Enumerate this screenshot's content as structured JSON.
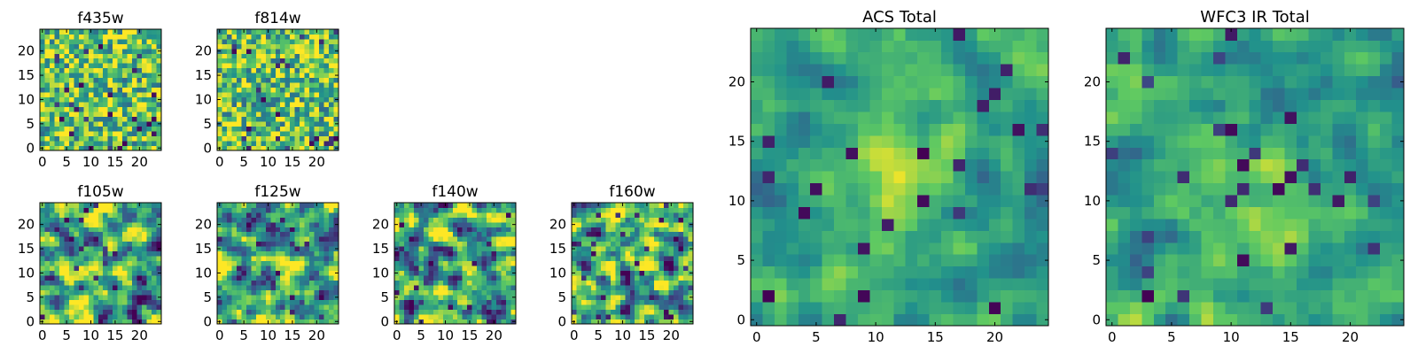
{
  "figure": {
    "colormap": "viridis",
    "colormap_stops": [
      "#440154",
      "#3b528b",
      "#21918c",
      "#5ec962",
      "#fde725"
    ],
    "frame_color": "#000000"
  },
  "chart_data": [
    {
      "type": "heatmap",
      "title": "f435w",
      "grid_size": 25,
      "xlim": [
        0,
        24
      ],
      "ylim": [
        0,
        24
      ],
      "xticks": [
        0,
        5,
        10,
        15,
        20
      ],
      "yticks": [
        0,
        5,
        10,
        15,
        20
      ],
      "texture": "noise-fine"
    },
    {
      "type": "heatmap",
      "title": "f814w",
      "grid_size": 25,
      "xlim": [
        0,
        24
      ],
      "ylim": [
        0,
        24
      ],
      "xticks": [
        0,
        5,
        10,
        15,
        20
      ],
      "yticks": [
        0,
        5,
        10,
        15,
        20
      ],
      "texture": "noise-fine"
    },
    {
      "type": "heatmap",
      "title": "f105w",
      "grid_size": 25,
      "xlim": [
        0,
        24
      ],
      "ylim": [
        0,
        24
      ],
      "xticks": [
        0,
        5,
        10,
        15,
        20
      ],
      "yticks": [
        0,
        5,
        10,
        15,
        20
      ],
      "texture": "noise-smooth"
    },
    {
      "type": "heatmap",
      "title": "f125w",
      "grid_size": 25,
      "xlim": [
        0,
        24
      ],
      "ylim": [
        0,
        24
      ],
      "xticks": [
        0,
        5,
        10,
        15,
        20
      ],
      "yticks": [
        0,
        5,
        10,
        15,
        20
      ],
      "texture": "noise-smooth"
    },
    {
      "type": "heatmap",
      "title": "f140w",
      "grid_size": 25,
      "xlim": [
        0,
        24
      ],
      "ylim": [
        0,
        24
      ],
      "xticks": [
        0,
        5,
        10,
        15,
        20
      ],
      "yticks": [
        0,
        5,
        10,
        15,
        20
      ],
      "texture": "noise-smooth"
    },
    {
      "type": "heatmap",
      "title": "f160w",
      "grid_size": 25,
      "xlim": [
        0,
        24
      ],
      "ylim": [
        0,
        24
      ],
      "xticks": [
        0,
        5,
        10,
        15,
        20
      ],
      "yticks": [
        0,
        5,
        10,
        15,
        20
      ],
      "texture": "noise-smooth"
    },
    {
      "type": "heatmap",
      "title": "ACS Total",
      "grid_size": 25,
      "xlim": [
        0,
        24
      ],
      "ylim": [
        0,
        24
      ],
      "xticks": [
        0,
        5,
        10,
        15,
        20
      ],
      "yticks": [
        0,
        5,
        10,
        15,
        20
      ],
      "texture": "noise-centered"
    },
    {
      "type": "heatmap",
      "title": "WFC3 IR Total",
      "grid_size": 25,
      "xlim": [
        0,
        24
      ],
      "ylim": [
        0,
        24
      ],
      "xticks": [
        0,
        5,
        10,
        15,
        20
      ],
      "yticks": [
        0,
        5,
        10,
        15,
        20
      ],
      "texture": "noise-centered"
    }
  ]
}
